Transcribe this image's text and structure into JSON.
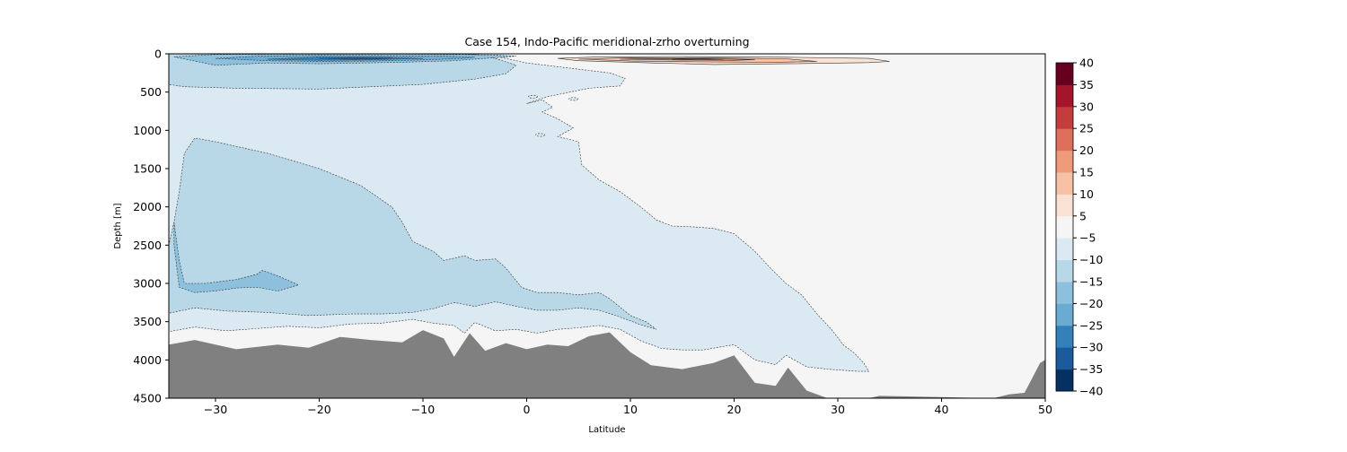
{
  "chart_data": {
    "type": "contour",
    "title": "Case 154, Indo-Pacific meridional-zrho overturning",
    "xlabel": "Latitude",
    "ylabel": "Depth [m]",
    "xlim": [
      -34.5,
      50
    ],
    "ylim": [
      4500,
      0
    ],
    "y_inverted": true,
    "x_ticks": [
      -30,
      -20,
      -10,
      0,
      10,
      20,
      30,
      40,
      50
    ],
    "y_ticks": [
      0,
      500,
      1000,
      1500,
      2000,
      2500,
      3000,
      3500,
      4000,
      4500
    ],
    "colorbar": {
      "levels": [
        -40,
        -35,
        -30,
        -25,
        -20,
        -15,
        -10,
        -5,
        5,
        10,
        15,
        20,
        25,
        30,
        35,
        40
      ],
      "tick_labels": [
        "40",
        "35",
        "30",
        "25",
        "20",
        "15",
        "10",
        "5",
        "−5",
        "−10",
        "−15",
        "−20",
        "−25",
        "−30",
        "−35",
        "−40"
      ],
      "colors": [
        "#053061",
        "#1b5a9c",
        "#3480b9",
        "#6aabd1",
        "#8cc0dd",
        "#b8d8e8",
        "#dbeaf2",
        "#f5f5f5",
        "#f9e1d4",
        "#f7c1a6",
        "#ef9a7b",
        "#dd6e5b",
        "#c43c3c",
        "#a4152b",
        "#67001f"
      ]
    },
    "colors": {
      "land": "#808080",
      "background": "#f5f5f5",
      "contour_line": "#333333"
    },
    "features": [
      {
        "name": "Southern surface overturning cell",
        "sign": "negative",
        "lat_range": [
          -34.5,
          1
        ],
        "depth_range": [
          0,
          500
        ],
        "min_value": -30
      },
      {
        "name": "Deep negative cell",
        "sign": "negative",
        "lat_range": [
          -34.5,
          33
        ],
        "depth_range": [
          200,
          4200
        ],
        "min_value": -20
      },
      {
        "name": "Northern surface positive cell",
        "sign": "positive",
        "lat_range": [
          3,
          35
        ],
        "depth_range": [
          0,
          150
        ],
        "max_value": 20
      }
    ],
    "bathymetry": [
      {
        "x": -34.5,
        "depth": 3800
      },
      {
        "x": -32,
        "depth": 3740
      },
      {
        "x": -28,
        "depth": 3860
      },
      {
        "x": -24,
        "depth": 3800
      },
      {
        "x": -21,
        "depth": 3840
      },
      {
        "x": -18,
        "depth": 3700
      },
      {
        "x": -15,
        "depth": 3740
      },
      {
        "x": -12,
        "depth": 3770
      },
      {
        "x": -10,
        "depth": 3610
      },
      {
        "x": -8,
        "depth": 3720
      },
      {
        "x": -7,
        "depth": 3960
      },
      {
        "x": -5.5,
        "depth": 3650
      },
      {
        "x": -4,
        "depth": 3880
      },
      {
        "x": -2,
        "depth": 3780
      },
      {
        "x": 0,
        "depth": 3860
      },
      {
        "x": 2,
        "depth": 3800
      },
      {
        "x": 4,
        "depth": 3820
      },
      {
        "x": 6,
        "depth": 3690
      },
      {
        "x": 8,
        "depth": 3640
      },
      {
        "x": 10,
        "depth": 3900
      },
      {
        "x": 12,
        "depth": 4070
      },
      {
        "x": 15,
        "depth": 4120
      },
      {
        "x": 18,
        "depth": 4040
      },
      {
        "x": 20,
        "depth": 3940
      },
      {
        "x": 22,
        "depth": 4300
      },
      {
        "x": 24,
        "depth": 4340
      },
      {
        "x": 25.2,
        "depth": 4100
      },
      {
        "x": 27,
        "depth": 4400
      },
      {
        "x": 29,
        "depth": 4500
      },
      {
        "x": 33,
        "depth": 4500
      },
      {
        "x": 34,
        "depth": 4470
      },
      {
        "x": 45,
        "depth": 4500
      },
      {
        "x": 46.5,
        "depth": 4450
      },
      {
        "x": 48,
        "depth": 4430
      },
      {
        "x": 49.5,
        "depth": 4040
      },
      {
        "x": 50,
        "depth": 4000
      }
    ]
  }
}
